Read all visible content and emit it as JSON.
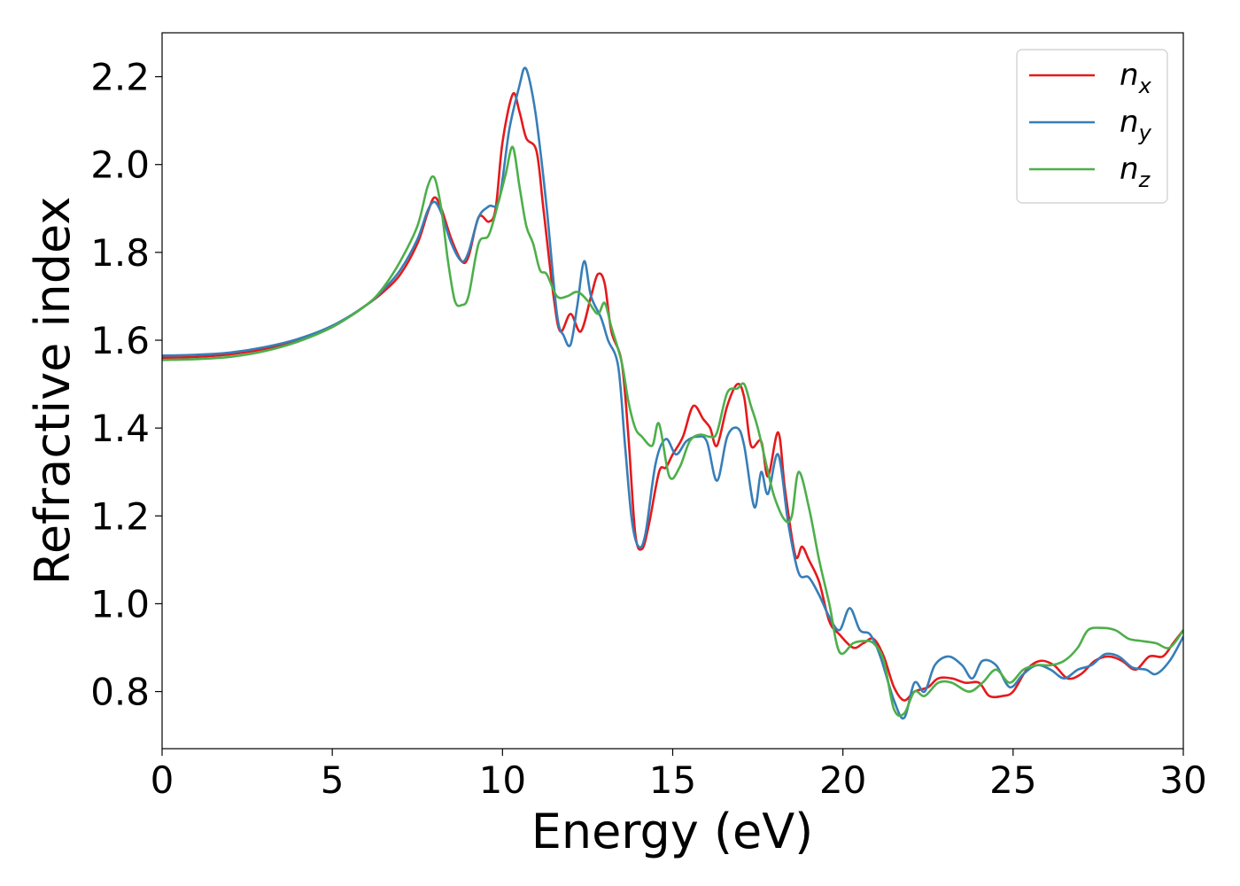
{
  "chart_data": {
    "type": "line",
    "xlabel": "Energy (eV)",
    "ylabel": "Refractive index",
    "xlim": [
      0,
      30
    ],
    "ylim": [
      0.67,
      2.3
    ],
    "xticks": [
      0,
      5,
      10,
      15,
      20,
      25,
      30
    ],
    "yticks": [
      0.8,
      1.0,
      1.2,
      1.4,
      1.6,
      1.8,
      2.0,
      2.2
    ],
    "xtick_labels": [
      "0",
      "5",
      "10",
      "15",
      "20",
      "25",
      "30"
    ],
    "ytick_labels": [
      "0.8",
      "1.0",
      "1.2",
      "1.4",
      "1.6",
      "1.8",
      "2.0",
      "2.2"
    ],
    "grid": false,
    "legend_position": "top-right",
    "series": [
      {
        "name": "n_x",
        "label_main": "n",
        "label_sub": "x",
        "color": "#e41a1c",
        "points": [
          [
            0,
            1.56
          ],
          [
            1,
            1.562
          ],
          [
            2,
            1.568
          ],
          [
            3,
            1.58
          ],
          [
            4,
            1.6
          ],
          [
            5,
            1.63
          ],
          [
            6,
            1.68
          ],
          [
            6.5,
            1.71
          ],
          [
            7,
            1.75
          ],
          [
            7.5,
            1.82
          ],
          [
            7.8,
            1.89
          ],
          [
            8.0,
            1.925
          ],
          [
            8.2,
            1.9
          ],
          [
            8.5,
            1.83
          ],
          [
            8.8,
            1.78
          ],
          [
            9.0,
            1.79
          ],
          [
            9.3,
            1.88
          ],
          [
            9.6,
            1.87
          ],
          [
            9.8,
            1.9
          ],
          [
            10.0,
            2.05
          ],
          [
            10.3,
            2.16
          ],
          [
            10.5,
            2.12
          ],
          [
            10.7,
            2.06
          ],
          [
            11.0,
            2.03
          ],
          [
            11.2,
            1.9
          ],
          [
            11.5,
            1.7
          ],
          [
            11.7,
            1.62
          ],
          [
            12.0,
            1.66
          ],
          [
            12.3,
            1.62
          ],
          [
            12.6,
            1.7
          ],
          [
            12.8,
            1.75
          ],
          [
            13.0,
            1.73
          ],
          [
            13.2,
            1.62
          ],
          [
            13.5,
            1.55
          ],
          [
            13.7,
            1.38
          ],
          [
            13.9,
            1.16
          ],
          [
            14.1,
            1.125
          ],
          [
            14.3,
            1.18
          ],
          [
            14.6,
            1.3
          ],
          [
            14.8,
            1.31
          ],
          [
            15.0,
            1.34
          ],
          [
            15.3,
            1.38
          ],
          [
            15.6,
            1.45
          ],
          [
            15.9,
            1.42
          ],
          [
            16.1,
            1.4
          ],
          [
            16.3,
            1.36
          ],
          [
            16.6,
            1.45
          ],
          [
            16.9,
            1.5
          ],
          [
            17.1,
            1.47
          ],
          [
            17.3,
            1.36
          ],
          [
            17.6,
            1.37
          ],
          [
            17.8,
            1.29
          ],
          [
            18.1,
            1.39
          ],
          [
            18.3,
            1.26
          ],
          [
            18.6,
            1.11
          ],
          [
            18.8,
            1.13
          ],
          [
            19.0,
            1.1
          ],
          [
            19.3,
            1.05
          ],
          [
            19.6,
            0.96
          ],
          [
            19.9,
            0.93
          ],
          [
            20.3,
            0.9
          ],
          [
            20.6,
            0.91
          ],
          [
            20.9,
            0.92
          ],
          [
            21.2,
            0.88
          ],
          [
            21.5,
            0.81
          ],
          [
            21.8,
            0.78
          ],
          [
            22.1,
            0.8
          ],
          [
            22.5,
            0.81
          ],
          [
            22.8,
            0.83
          ],
          [
            23.2,
            0.83
          ],
          [
            23.6,
            0.82
          ],
          [
            24.0,
            0.82
          ],
          [
            24.3,
            0.79
          ],
          [
            24.7,
            0.79
          ],
          [
            25.0,
            0.8
          ],
          [
            25.4,
            0.85
          ],
          [
            25.8,
            0.87
          ],
          [
            26.2,
            0.86
          ],
          [
            26.6,
            0.83
          ],
          [
            27.0,
            0.84
          ],
          [
            27.4,
            0.87
          ],
          [
            27.8,
            0.88
          ],
          [
            28.2,
            0.87
          ],
          [
            28.6,
            0.85
          ],
          [
            29.0,
            0.88
          ],
          [
            29.4,
            0.88
          ],
          [
            29.7,
            0.91
          ],
          [
            30,
            0.94
          ]
        ]
      },
      {
        "name": "n_y",
        "label_main": "n",
        "label_sub": "y",
        "color": "#377eb8",
        "points": [
          [
            0,
            1.565
          ],
          [
            1,
            1.567
          ],
          [
            2,
            1.572
          ],
          [
            3,
            1.584
          ],
          [
            4,
            1.603
          ],
          [
            5,
            1.633
          ],
          [
            6,
            1.68
          ],
          [
            6.5,
            1.715
          ],
          [
            7,
            1.76
          ],
          [
            7.5,
            1.83
          ],
          [
            7.8,
            1.895
          ],
          [
            8.0,
            1.915
          ],
          [
            8.2,
            1.89
          ],
          [
            8.5,
            1.82
          ],
          [
            8.8,
            1.78
          ],
          [
            9.0,
            1.8
          ],
          [
            9.3,
            1.88
          ],
          [
            9.6,
            1.905
          ],
          [
            9.9,
            1.92
          ],
          [
            10.2,
            2.08
          ],
          [
            10.5,
            2.18
          ],
          [
            10.65,
            2.22
          ],
          [
            10.8,
            2.19
          ],
          [
            11.0,
            2.1
          ],
          [
            11.3,
            1.9
          ],
          [
            11.6,
            1.66
          ],
          [
            11.8,
            1.61
          ],
          [
            12.0,
            1.59
          ],
          [
            12.2,
            1.68
          ],
          [
            12.4,
            1.78
          ],
          [
            12.6,
            1.7
          ],
          [
            12.9,
            1.65
          ],
          [
            13.1,
            1.6
          ],
          [
            13.4,
            1.54
          ],
          [
            13.6,
            1.36
          ],
          [
            13.8,
            1.19
          ],
          [
            14.0,
            1.13
          ],
          [
            14.2,
            1.16
          ],
          [
            14.5,
            1.32
          ],
          [
            14.8,
            1.375
          ],
          [
            15.1,
            1.34
          ],
          [
            15.4,
            1.37
          ],
          [
            15.7,
            1.38
          ],
          [
            16.0,
            1.37
          ],
          [
            16.3,
            1.28
          ],
          [
            16.6,
            1.38
          ],
          [
            16.9,
            1.4
          ],
          [
            17.1,
            1.36
          ],
          [
            17.4,
            1.22
          ],
          [
            17.6,
            1.3
          ],
          [
            17.8,
            1.25
          ],
          [
            18.1,
            1.34
          ],
          [
            18.4,
            1.18
          ],
          [
            18.7,
            1.07
          ],
          [
            19.0,
            1.06
          ],
          [
            19.3,
            1.02
          ],
          [
            19.6,
            0.97
          ],
          [
            19.9,
            0.94
          ],
          [
            20.2,
            0.99
          ],
          [
            20.5,
            0.94
          ],
          [
            20.8,
            0.93
          ],
          [
            21.1,
            0.88
          ],
          [
            21.5,
            0.78
          ],
          [
            21.8,
            0.74
          ],
          [
            22.1,
            0.82
          ],
          [
            22.4,
            0.8
          ],
          [
            22.7,
            0.86
          ],
          [
            23.1,
            0.88
          ],
          [
            23.5,
            0.86
          ],
          [
            23.8,
            0.83
          ],
          [
            24.1,
            0.87
          ],
          [
            24.5,
            0.86
          ],
          [
            24.9,
            0.81
          ],
          [
            25.3,
            0.84
          ],
          [
            25.7,
            0.86
          ],
          [
            26.1,
            0.85
          ],
          [
            26.5,
            0.83
          ],
          [
            26.9,
            0.85
          ],
          [
            27.3,
            0.86
          ],
          [
            27.7,
            0.885
          ],
          [
            28.1,
            0.88
          ],
          [
            28.5,
            0.855
          ],
          [
            28.9,
            0.85
          ],
          [
            29.2,
            0.84
          ],
          [
            29.6,
            0.87
          ],
          [
            30,
            0.925
          ]
        ]
      },
      {
        "name": "n_z",
        "label_main": "n",
        "label_sub": "z",
        "color": "#4daf4a",
        "points": [
          [
            0,
            1.555
          ],
          [
            1,
            1.557
          ],
          [
            2,
            1.562
          ],
          [
            3,
            1.575
          ],
          [
            4,
            1.597
          ],
          [
            5,
            1.63
          ],
          [
            6,
            1.68
          ],
          [
            6.5,
            1.72
          ],
          [
            7,
            1.78
          ],
          [
            7.5,
            1.86
          ],
          [
            7.8,
            1.95
          ],
          [
            8.0,
            1.97
          ],
          [
            8.2,
            1.9
          ],
          [
            8.4,
            1.78
          ],
          [
            8.6,
            1.69
          ],
          [
            8.8,
            1.68
          ],
          [
            9.0,
            1.7
          ],
          [
            9.3,
            1.82
          ],
          [
            9.6,
            1.84
          ],
          [
            9.9,
            1.92
          ],
          [
            10.1,
            1.98
          ],
          [
            10.3,
            2.04
          ],
          [
            10.5,
            1.95
          ],
          [
            10.7,
            1.86
          ],
          [
            10.9,
            1.82
          ],
          [
            11.1,
            1.76
          ],
          [
            11.3,
            1.75
          ],
          [
            11.6,
            1.7
          ],
          [
            11.9,
            1.7
          ],
          [
            12.2,
            1.71
          ],
          [
            12.5,
            1.69
          ],
          [
            12.8,
            1.66
          ],
          [
            13.0,
            1.685
          ],
          [
            13.2,
            1.63
          ],
          [
            13.5,
            1.55
          ],
          [
            13.7,
            1.46
          ],
          [
            13.9,
            1.4
          ],
          [
            14.1,
            1.38
          ],
          [
            14.4,
            1.36
          ],
          [
            14.6,
            1.41
          ],
          [
            14.9,
            1.29
          ],
          [
            15.2,
            1.31
          ],
          [
            15.5,
            1.37
          ],
          [
            15.8,
            1.385
          ],
          [
            16.1,
            1.38
          ],
          [
            16.3,
            1.39
          ],
          [
            16.6,
            1.48
          ],
          [
            16.9,
            1.49
          ],
          [
            17.1,
            1.5
          ],
          [
            17.3,
            1.45
          ],
          [
            17.5,
            1.4
          ],
          [
            17.8,
            1.3
          ],
          [
            18.0,
            1.24
          ],
          [
            18.3,
            1.19
          ],
          [
            18.5,
            1.2
          ],
          [
            18.7,
            1.3
          ],
          [
            19.0,
            1.22
          ],
          [
            19.3,
            1.1
          ],
          [
            19.6,
            1.0
          ],
          [
            19.9,
            0.89
          ],
          [
            20.3,
            0.91
          ],
          [
            20.6,
            0.915
          ],
          [
            20.9,
            0.91
          ],
          [
            21.2,
            0.87
          ],
          [
            21.5,
            0.76
          ],
          [
            21.8,
            0.75
          ],
          [
            22.1,
            0.8
          ],
          [
            22.4,
            0.79
          ],
          [
            22.8,
            0.82
          ],
          [
            23.2,
            0.82
          ],
          [
            23.7,
            0.8
          ],
          [
            24.1,
            0.82
          ],
          [
            24.5,
            0.85
          ],
          [
            24.9,
            0.82
          ],
          [
            25.3,
            0.85
          ],
          [
            25.7,
            0.86
          ],
          [
            26.1,
            0.86
          ],
          [
            26.5,
            0.87
          ],
          [
            26.9,
            0.9
          ],
          [
            27.2,
            0.94
          ],
          [
            27.6,
            0.945
          ],
          [
            28.0,
            0.94
          ],
          [
            28.4,
            0.92
          ],
          [
            28.8,
            0.915
          ],
          [
            29.2,
            0.91
          ],
          [
            29.6,
            0.9
          ],
          [
            30,
            0.94
          ]
        ]
      }
    ]
  }
}
